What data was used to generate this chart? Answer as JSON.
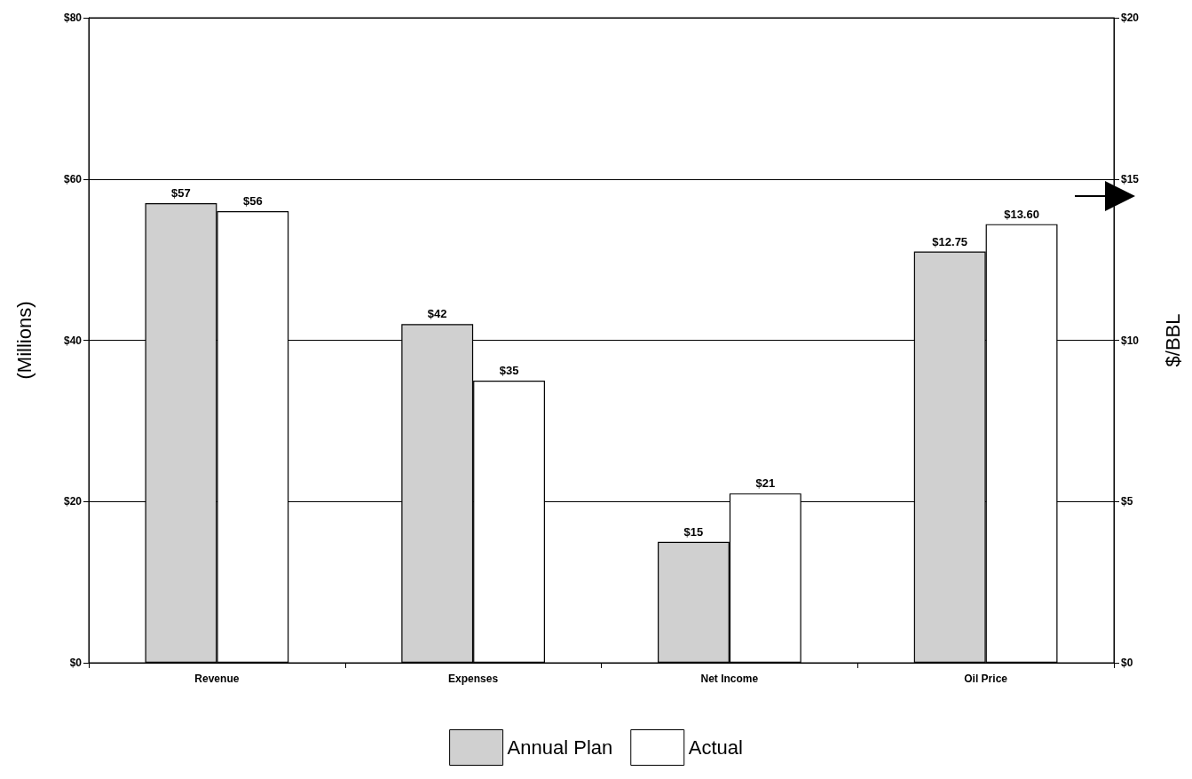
{
  "chart_data": {
    "type": "bar",
    "categories": [
      "Revenue",
      "Expenses",
      "Net Income",
      "Oil Price"
    ],
    "ylabel": "(Millions)",
    "y2label": "$/BBL",
    "ylim": [
      0,
      80
    ],
    "yticks": [
      {
        "value": 0,
        "label": "$0"
      },
      {
        "value": 20,
        "label": "$20"
      },
      {
        "value": 40,
        "label": "$40"
      },
      {
        "value": 60,
        "label": "$60"
      },
      {
        "value": 80,
        "label": "$80"
      }
    ],
    "y2lim": [
      0,
      20
    ],
    "y2ticks": [
      {
        "value": 0,
        "label": "$0"
      },
      {
        "value": 5,
        "label": "$5"
      },
      {
        "value": 10,
        "label": "$10"
      },
      {
        "value": 15,
        "label": "$15"
      },
      {
        "value": 20,
        "label": "$20"
      }
    ],
    "grid": "y",
    "legend": "bottom",
    "series": [
      {
        "name": "Annual Plan",
        "color": "#d0d0d0",
        "values": [
          57,
          42,
          15,
          null
        ],
        "value_labels": [
          "$57",
          "$42",
          "$15",
          null
        ]
      },
      {
        "name": "Actual",
        "color": "#ffffff",
        "values": [
          56,
          35,
          21,
          null
        ],
        "value_labels": [
          "$56",
          "$35",
          "$21",
          null
        ]
      },
      {
        "color": "#d0d0d0",
        "axis": "y2",
        "values": [
          null,
          null,
          null,
          12.75
        ],
        "value_labels": [
          null,
          null,
          null,
          "$12.75"
        ]
      },
      {
        "color": "#ffffff",
        "axis": "y2",
        "values": [
          null,
          null,
          null,
          13.6
        ],
        "value_labels": [
          null,
          null,
          null,
          "$13.60"
        ]
      }
    ]
  }
}
